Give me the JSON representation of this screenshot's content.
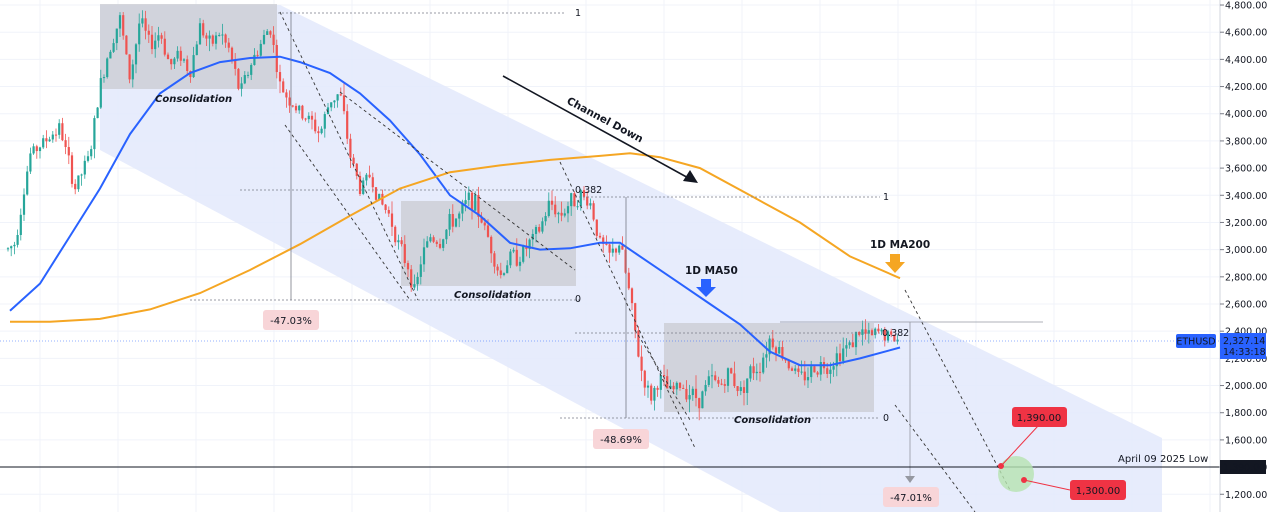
{
  "chart_data": {
    "type": "candlestick",
    "symbol": "ETHUSD",
    "last_price": "2,327.14",
    "countdown": "14:33:18",
    "y_ticks": [
      1200,
      1400,
      1600,
      1800,
      2000,
      2200,
      2400,
      2600,
      2800,
      3000,
      3200,
      3400,
      3600,
      3800,
      4000,
      4200,
      4400,
      4600,
      4800
    ],
    "y_tick_labels": [
      "1,200.00",
      "1,400.00",
      "1,600.00",
      "1,800.00",
      "2,000.00",
      "2,200.00",
      "2,400.00",
      "2,600.00",
      "2,800.00",
      "3,000.00",
      "3,200.00",
      "3,400.00",
      "3,600.00",
      "3,800.00",
      "4,000.00",
      "4,200.00",
      "4,400.00",
      "4,600.00",
      "4,800.00"
    ],
    "ylim": [
      1100,
      4880
    ],
    "xlim": [
      0,
      1220
    ],
    "price_path": [
      [
        0,
        2950
      ],
      [
        15,
        3050
      ],
      [
        30,
        3700
      ],
      [
        45,
        3800
      ],
      [
        60,
        3900
      ],
      [
        75,
        3450
      ],
      [
        90,
        3700
      ],
      [
        100,
        4200
      ],
      [
        110,
        4500
      ],
      [
        120,
        4700
      ],
      [
        130,
        4250
      ],
      [
        140,
        4700
      ],
      [
        150,
        4500
      ],
      [
        160,
        4600
      ],
      [
        170,
        4350
      ],
      [
        180,
        4450
      ],
      [
        190,
        4300
      ],
      [
        200,
        4650
      ],
      [
        210,
        4500
      ],
      [
        220,
        4600
      ],
      [
        230,
        4450
      ],
      [
        240,
        4150
      ],
      [
        250,
        4350
      ],
      [
        260,
        4500
      ],
      [
        270,
        4650
      ],
      [
        280,
        4200
      ],
      [
        290,
        4100
      ],
      [
        300,
        4000
      ],
      [
        310,
        3950
      ],
      [
        320,
        3850
      ],
      [
        330,
        4100
      ],
      [
        340,
        4150
      ],
      [
        350,
        3700
      ],
      [
        360,
        3450
      ],
      [
        370,
        3550
      ],
      [
        380,
        3350
      ],
      [
        390,
        3250
      ],
      [
        400,
        3000
      ],
      [
        410,
        2850
      ],
      [
        415,
        2650
      ],
      [
        420,
        2900
      ],
      [
        430,
        3100
      ],
      [
        440,
        3050
      ],
      [
        450,
        3200
      ],
      [
        460,
        3250
      ],
      [
        470,
        3400
      ],
      [
        480,
        3250
      ],
      [
        490,
        3050
      ],
      [
        500,
        2800
      ],
      [
        510,
        2950
      ],
      [
        520,
        2950
      ],
      [
        530,
        3050
      ],
      [
        540,
        3150
      ],
      [
        550,
        3350
      ],
      [
        560,
        3250
      ],
      [
        570,
        3350
      ],
      [
        580,
        3400
      ],
      [
        590,
        3350
      ],
      [
        600,
        3050
      ],
      [
        610,
        2950
      ],
      [
        620,
        3050
      ],
      [
        630,
        2650
      ],
      [
        640,
        2150
      ],
      [
        650,
        1900
      ],
      [
        660,
        2050
      ],
      [
        670,
        1950
      ],
      [
        680,
        2000
      ],
      [
        690,
        1950
      ],
      [
        700,
        1900
      ],
      [
        710,
        2050
      ],
      [
        720,
        2000
      ],
      [
        730,
        2100
      ],
      [
        740,
        1950
      ],
      [
        750,
        2100
      ],
      [
        760,
        2150
      ],
      [
        770,
        2350
      ],
      [
        780,
        2250
      ],
      [
        790,
        2150
      ],
      [
        800,
        2050
      ],
      [
        810,
        2100
      ],
      [
        820,
        2150
      ],
      [
        830,
        2150
      ],
      [
        840,
        2250
      ],
      [
        850,
        2300
      ],
      [
        860,
        2400
      ],
      [
        870,
        2350
      ],
      [
        880,
        2400
      ],
      [
        890,
        2350
      ],
      [
        900,
        2330
      ]
    ],
    "series": [
      {
        "name": "1D MA50",
        "color": "#2962ff",
        "points": [
          [
            10,
            2550
          ],
          [
            40,
            2750
          ],
          [
            70,
            3100
          ],
          [
            100,
            3450
          ],
          [
            130,
            3850
          ],
          [
            160,
            4150
          ],
          [
            190,
            4300
          ],
          [
            220,
            4380
          ],
          [
            250,
            4410
          ],
          [
            280,
            4420
          ],
          [
            300,
            4380
          ],
          [
            330,
            4300
          ],
          [
            360,
            4150
          ],
          [
            390,
            3950
          ],
          [
            420,
            3700
          ],
          [
            450,
            3400
          ],
          [
            480,
            3250
          ],
          [
            510,
            3050
          ],
          [
            540,
            3000
          ],
          [
            570,
            3010
          ],
          [
            600,
            3050
          ],
          [
            620,
            3050
          ],
          [
            650,
            2900
          ],
          [
            680,
            2750
          ],
          [
            710,
            2600
          ],
          [
            740,
            2450
          ],
          [
            770,
            2250
          ],
          [
            800,
            2150
          ],
          [
            830,
            2150
          ],
          [
            860,
            2200
          ],
          [
            900,
            2280
          ]
        ]
      },
      {
        "name": "1D MA200",
        "color": "#f5a623",
        "points": [
          [
            10,
            2470
          ],
          [
            50,
            2470
          ],
          [
            100,
            2490
          ],
          [
            150,
            2560
          ],
          [
            200,
            2680
          ],
          [
            250,
            2850
          ],
          [
            300,
            3040
          ],
          [
            350,
            3250
          ],
          [
            400,
            3450
          ],
          [
            450,
            3570
          ],
          [
            500,
            3620
          ],
          [
            550,
            3660
          ],
          [
            600,
            3690
          ],
          [
            630,
            3710
          ],
          [
            660,
            3680
          ],
          [
            700,
            3600
          ],
          [
            750,
            3400
          ],
          [
            800,
            3200
          ],
          [
            850,
            2950
          ],
          [
            900,
            2790
          ]
        ]
      }
    ],
    "annotations": {
      "channel_label": "Channel Down",
      "consolidation_1": "Consolidation",
      "consolidation_2": "Consolidation",
      "consolidation_3": "Consolidation",
      "ma50_label": "1D MA50",
      "ma200_label": "1D MA200",
      "drop_1": "-47.03%",
      "drop_2": "-48.69%",
      "drop_3": "-47.01%",
      "fib_1a": "1",
      "fib_1b": "0.382",
      "fib_1c": "0",
      "fib_2a": "1",
      "fib_2b": "0.382",
      "fib_2c": "0",
      "target_1": "1,390.00",
      "target_2": "1,300.00",
      "april_low_label": "April 09 2025 Low",
      "april_low_price": "1,390.00"
    },
    "colors": {
      "bull": "#26a69a",
      "bear": "#ef5350",
      "channel_fill": "#e3e9fb",
      "consolidation_fill": "#c9cbd2",
      "target_red": "#ef3344",
      "drop_pill_bg": "#f8d5d8",
      "drop_pill_text": "#c0263a",
      "ethusd_bg": "#2962ff",
      "low_line": "#131722"
    }
  }
}
